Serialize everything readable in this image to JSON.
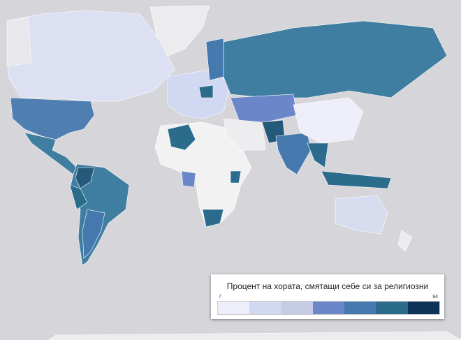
{
  "legend": {
    "title": "Процент на хората, смятащи себе си за религиозни",
    "min": 7,
    "max": 94,
    "colors": [
      "#eeeefa",
      "#d0d8f2",
      "#c6cce6",
      "#6c87c9",
      "#4679ae",
      "#2b6c8d",
      "#0e3358"
    ]
  }
}
